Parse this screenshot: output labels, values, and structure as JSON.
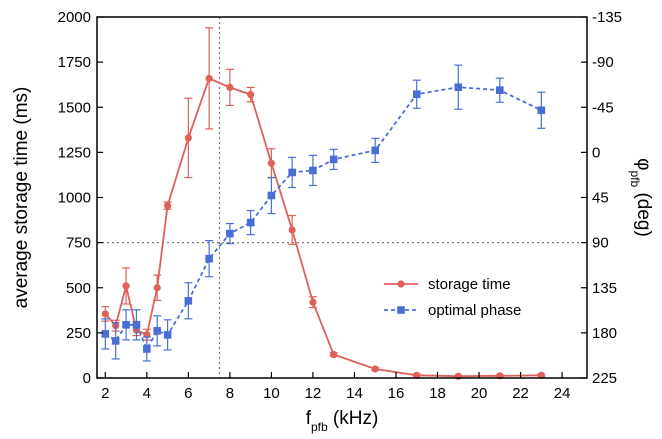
{
  "chart_data": {
    "type": "line",
    "xlabel_main": "f",
    "xlabel_sub": "pfb",
    "xlabel_unit": " (kHz)",
    "ylabel": "average storage time (ms)",
    "y2label_main": "φ",
    "y2label_sub": "pfb",
    "y2label_unit": " (deg)",
    "xlim": [
      1.6,
      25.2
    ],
    "ylim": [
      0,
      2000
    ],
    "y2lim": [
      225,
      -135
    ],
    "xticks": [
      2,
      4,
      6,
      8,
      10,
      12,
      14,
      16,
      18,
      20,
      22,
      24
    ],
    "yticks": [
      0,
      250,
      500,
      750,
      1000,
      1250,
      1500,
      1750,
      2000
    ],
    "y2ticks": [
      225,
      180,
      135,
      90,
      45,
      0,
      -45,
      -90,
      -135
    ],
    "reference_lines": {
      "x": 7.5,
      "y": 750
    },
    "legend_position": "center-right",
    "series": [
      {
        "name": "storage time",
        "color": "#e0605a",
        "axis": "left",
        "marker": "circle",
        "line": "solid",
        "x": [
          2,
          2.5,
          3,
          3.5,
          4,
          4.5,
          5,
          6,
          7,
          8,
          9,
          10,
          11,
          12,
          13,
          15,
          17,
          19,
          21,
          23
        ],
        "y": [
          355,
          290,
          510,
          265,
          240,
          500,
          955,
          1330,
          1660,
          1610,
          1570,
          1190,
          820,
          420,
          130,
          50,
          15,
          10,
          12,
          15
        ],
        "err": [
          40,
          30,
          100,
          30,
          30,
          70,
          20,
          220,
          280,
          100,
          40,
          80,
          80,
          30,
          10,
          8,
          5,
          5,
          5,
          5
        ]
      },
      {
        "name": "optimal phase",
        "color": "#4a6ed6",
        "axis": "right",
        "marker": "square",
        "line": "dashed",
        "x": [
          2,
          2.5,
          3,
          3.5,
          4,
          4.5,
          5,
          6,
          7,
          8,
          9,
          10,
          11,
          12,
          13,
          15,
          17,
          19,
          21,
          23
        ],
        "y": [
          181,
          188,
          172,
          172,
          196,
          178,
          182,
          148,
          106,
          81,
          70,
          43,
          20,
          18,
          7,
          -2,
          -58,
          -65,
          -62,
          -42
        ],
        "err": [
          15,
          18,
          15,
          15,
          12,
          15,
          15,
          18,
          18,
          10,
          12,
          18,
          15,
          15,
          10,
          12,
          14,
          22,
          12,
          18
        ]
      }
    ]
  }
}
